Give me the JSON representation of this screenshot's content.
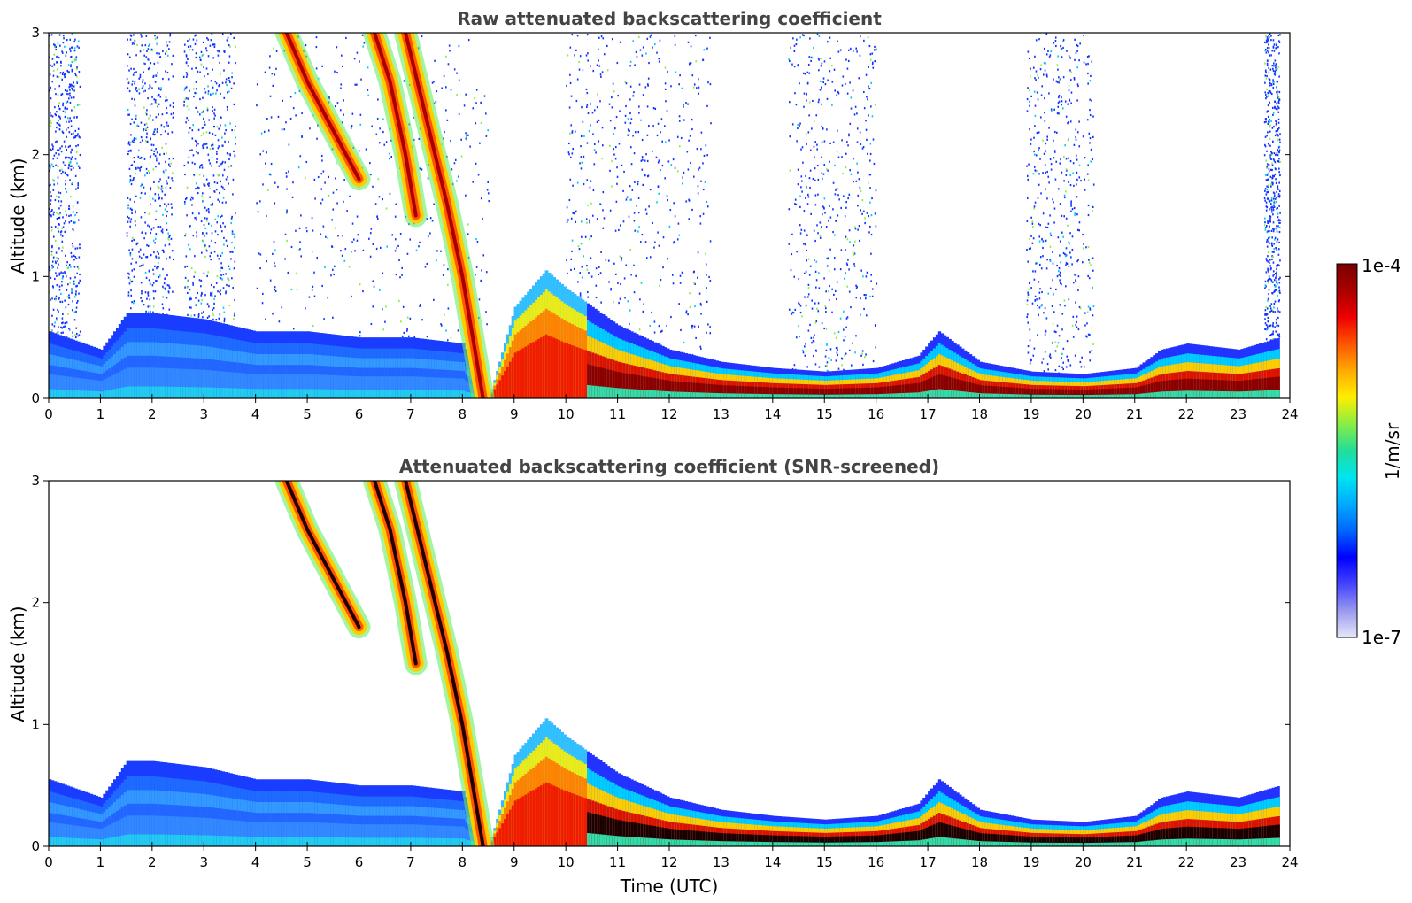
{
  "chart_data": [
    {
      "type": "heatmap",
      "title": "Raw attenuated backscattering coefficient",
      "xlabel": "",
      "ylabel": "Altitude (km)",
      "xlim": [
        0,
        24
      ],
      "ylim": [
        0,
        3
      ],
      "x_ticks": [
        "0",
        "1",
        "2",
        "3",
        "4",
        "5",
        "6",
        "7",
        "8",
        "9",
        "10",
        "11",
        "12",
        "13",
        "14",
        "15",
        "16",
        "17",
        "18",
        "19",
        "20",
        "21",
        "22",
        "23",
        "24"
      ],
      "y_ticks": [
        "0",
        "1",
        "2",
        "3"
      ],
      "boundary_layer_top_km": {
        "x": [
          0,
          1,
          1.5,
          2,
          3,
          4,
          5,
          6,
          7,
          8,
          8.5,
          9,
          9.6,
          10,
          11,
          12,
          13,
          14,
          15,
          16,
          16.8,
          17.2,
          18,
          19,
          20,
          21,
          21.5,
          22,
          23,
          23.8
        ],
        "y": [
          0.55,
          0.4,
          0.7,
          0.7,
          0.65,
          0.55,
          0.55,
          0.5,
          0.5,
          0.45,
          0.0,
          0.75,
          1.05,
          0.9,
          0.6,
          0.4,
          0.3,
          0.25,
          0.22,
          0.25,
          0.35,
          0.55,
          0.3,
          0.22,
          0.2,
          0.25,
          0.4,
          0.45,
          0.4,
          0.5
        ]
      },
      "cloud_layers": [
        {
          "x": [
            4.6,
            5.0,
            5.5,
            6.0
          ],
          "y": [
            3.0,
            2.6,
            2.2,
            1.8
          ]
        },
        {
          "x": [
            6.3,
            6.6,
            6.9,
            7.1
          ],
          "y": [
            3.0,
            2.6,
            2.0,
            1.5
          ]
        },
        {
          "x": [
            6.9,
            7.3,
            7.7,
            8.0,
            8.4
          ],
          "y": [
            3.0,
            2.3,
            1.6,
            1.0,
            0.0
          ]
        }
      ],
      "noise_columns_hours": [
        [
          0,
          0.6
        ],
        [
          1.5,
          2.4
        ],
        [
          2.6,
          3.6
        ],
        [
          4.0,
          8.5
        ],
        [
          10,
          12.8
        ],
        [
          14.3,
          16
        ],
        [
          18.9,
          20.2
        ],
        [
          23.5,
          23.8
        ]
      ]
    },
    {
      "type": "heatmap",
      "title": "Attenuated backscattering coefficient (SNR-screened)",
      "xlabel": "Time (UTC)",
      "ylabel": "Altitude (km)",
      "xlim": [
        0,
        24
      ],
      "ylim": [
        0,
        3
      ],
      "x_ticks": [
        "0",
        "1",
        "2",
        "3",
        "4",
        "5",
        "6",
        "7",
        "8",
        "9",
        "10",
        "11",
        "12",
        "13",
        "14",
        "15",
        "16",
        "17",
        "18",
        "19",
        "20",
        "21",
        "22",
        "23",
        "24"
      ],
      "y_ticks": [
        "0",
        "1",
        "2",
        "3"
      ],
      "boundary_layer_top_km": {
        "x": [
          0,
          1,
          1.5,
          2,
          3,
          4,
          5,
          6,
          7,
          8,
          8.5,
          9,
          9.6,
          10,
          11,
          12,
          13,
          14,
          15,
          16,
          16.8,
          17.2,
          18,
          19,
          20,
          21,
          21.5,
          22,
          23,
          23.8
        ],
        "y": [
          0.55,
          0.4,
          0.7,
          0.7,
          0.65,
          0.55,
          0.55,
          0.5,
          0.5,
          0.45,
          0.0,
          0.75,
          1.05,
          0.9,
          0.6,
          0.4,
          0.3,
          0.25,
          0.22,
          0.25,
          0.35,
          0.55,
          0.3,
          0.22,
          0.2,
          0.25,
          0.4,
          0.45,
          0.4,
          0.5
        ]
      },
      "cloud_layers": [
        {
          "x": [
            4.6,
            5.0,
            5.5,
            6.0
          ],
          "y": [
            3.0,
            2.6,
            2.2,
            1.8
          ]
        },
        {
          "x": [
            6.3,
            6.6,
            6.9,
            7.1
          ],
          "y": [
            3.0,
            2.6,
            2.0,
            1.5
          ]
        },
        {
          "x": [
            6.9,
            7.3,
            7.7,
            8.0,
            8.4
          ],
          "y": [
            3.0,
            2.3,
            1.6,
            1.0,
            0.0
          ]
        }
      ]
    }
  ],
  "colorbar": {
    "max_label": "1e-4",
    "min_label": "1e-7",
    "unit_label": "1/m/sr",
    "colors": [
      "#e6e6fa",
      "#9999ee",
      "#4444ff",
      "#0000ff",
      "#0066ff",
      "#00aaff",
      "#00e5ee",
      "#22dd99",
      "#88ee44",
      "#ffee00",
      "#ffaa00",
      "#ff5500",
      "#ee0000",
      "#aa0000",
      "#7a0000"
    ]
  }
}
